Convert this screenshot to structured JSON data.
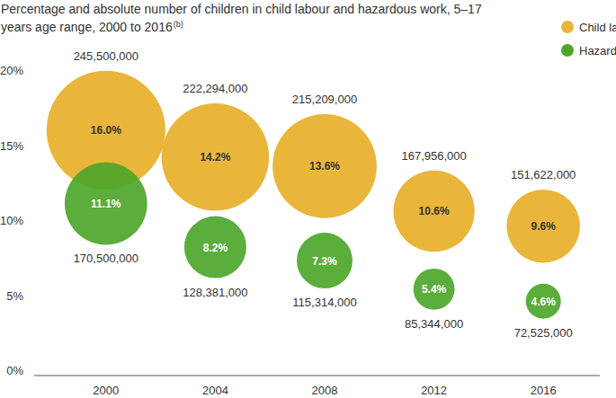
{
  "chart_data": {
    "type": "bubble",
    "title": "Percentage and absolute number of children in child labour and hazardous work, 5–17 years age range, 2000 to 2016",
    "title_superscript": "(b)",
    "categories": [
      "2000",
      "2004",
      "2008",
      "2012",
      "2016"
    ],
    "ylim": [
      0,
      20
    ],
    "yticks": [
      {
        "value": 0,
        "label": "0%"
      },
      {
        "value": 5,
        "label": "5%"
      },
      {
        "value": 10,
        "label": "10%"
      },
      {
        "value": 15,
        "label": "15%"
      },
      {
        "value": 20,
        "label": "20%"
      }
    ],
    "grid": false,
    "legend": "top-right",
    "data_labels": true,
    "series": [
      {
        "name": "Child labour",
        "color": "#e9b63b",
        "values": [
          16.0,
          14.2,
          13.6,
          10.6,
          9.6
        ],
        "value_labels": [
          "16.0%",
          "14.2%",
          "13.6%",
          "10.6%",
          "9.6%"
        ],
        "sizes": [
          245500000,
          222294000,
          215209000,
          167956000,
          151622000
        ],
        "size_labels": [
          "245,500,000",
          "222,294,000",
          "215,209,000",
          "167,956,000",
          "151,622,000"
        ]
      },
      {
        "name": "Hazardous work",
        "color": "#4da62b",
        "values": [
          11.1,
          8.2,
          7.3,
          5.4,
          4.6
        ],
        "value_labels": [
          "11.1%",
          "8.2%",
          "7.3%",
          "5.4%",
          "4.6%"
        ],
        "sizes": [
          170500000,
          128381000,
          115314000,
          85344000,
          72525000
        ],
        "size_labels": [
          "170,500,000",
          "128,381,000",
          "115,314,000",
          "85,344,000",
          "72,525,000"
        ]
      }
    ]
  }
}
